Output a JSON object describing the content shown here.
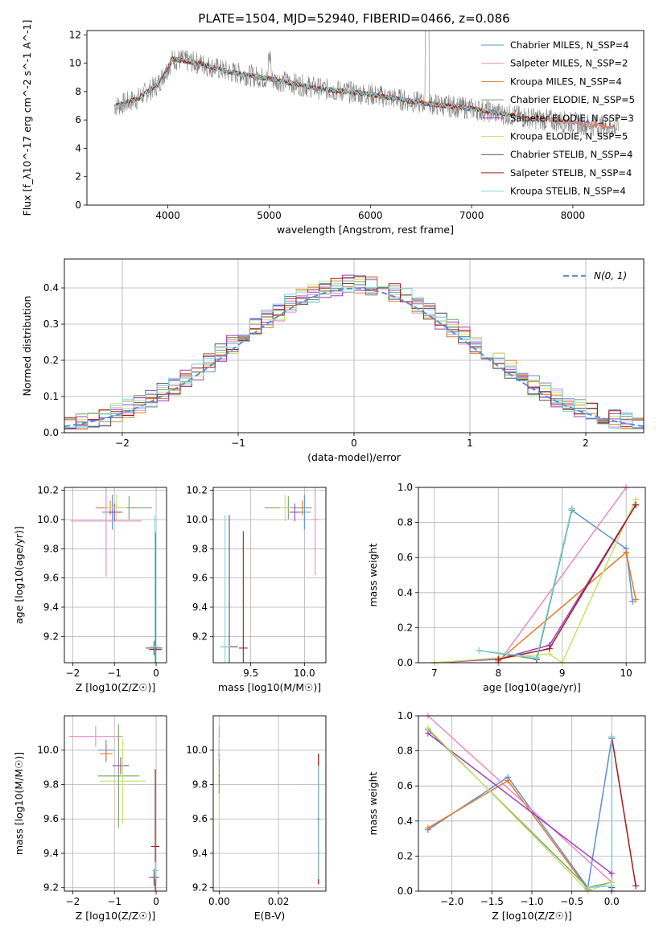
{
  "figure_title": "PLATE=1504, MJD=52940, FIBERID=0466, z=0.086",
  "colors": {
    "c0": "#5b8fd6",
    "c1": "#e88ac8",
    "c2": "#e07b2a",
    "c3": "#7d9e6a",
    "c4": "#9b3fbf",
    "c5": "#c8e06a",
    "c6": "#555555",
    "c7": "#a31a1a",
    "c8": "#7ed9e0",
    "data": "#808080"
  },
  "chart_data": [
    {
      "id": "spectrum",
      "type": "line",
      "xlabel": "wavelength [Angstrom, rest frame]",
      "ylabel": "Flux [f_λ10^-17 erg cm^-2 s^-1 A^-1]",
      "xlim": [
        3200,
        8700
      ],
      "ylim": [
        0,
        12.3
      ],
      "xticks": [
        4000,
        5000,
        6000,
        7000,
        8000
      ],
      "yticks": [
        0,
        2,
        4,
        6,
        8,
        10,
        12
      ],
      "grid": false,
      "legend_position": "top-right",
      "legend": [
        {
          "label": "Chabrier MILES, N_SSP=4",
          "color": "c0"
        },
        {
          "label": "Salpeter MILES, N_SSP=2",
          "color": "c1"
        },
        {
          "label": "Kroupa MILES, N_SSP=4",
          "color": "c2"
        },
        {
          "label": "Chabrier ELODIE, N_SSP=5",
          "color": "c3"
        },
        {
          "label": "Salpeter ELODIE, N_SSP=3",
          "color": "c4"
        },
        {
          "label": "Kroupa ELODIE, N_SSP=5",
          "color": "c5"
        },
        {
          "label": "Chabrier STELIB, N_SSP=4",
          "color": "c6"
        },
        {
          "label": "Salpeter STELIB, N_SSP=4",
          "color": "c7"
        },
        {
          "label": "Kroupa STELIB, N_SSP=4",
          "color": "c8"
        }
      ],
      "continuum": {
        "x": [
          3500,
          3700,
          3900,
          4050,
          4300,
          4600,
          5000,
          5500,
          6000,
          6500,
          7000,
          7500,
          8000,
          8500
        ],
        "y": [
          7.0,
          7.5,
          8.5,
          10.3,
          10.0,
          9.4,
          8.9,
          8.2,
          7.8,
          7.2,
          6.8,
          6.2,
          5.8,
          5.4
        ]
      },
      "model_range": {
        "x": [
          3480,
          7430
        ],
        "x_stelib": [
          3480,
          7430
        ],
        "x_miles": [
          3520,
          8400
        ]
      }
    },
    {
      "id": "histogram",
      "type": "histogram",
      "xlabel": "(data-model)/error",
      "ylabel": "Normed distribution",
      "xlim": [
        -2.5,
        2.5
      ],
      "ylim": [
        0,
        0.48
      ],
      "xticks": [
        -2,
        -1,
        0,
        1,
        2
      ],
      "yticks": [
        0.0,
        0.1,
        0.2,
        0.3,
        0.4
      ],
      "grid": true,
      "legend": [
        {
          "label": "N(0, 1)",
          "style": "dashed",
          "color": "c0"
        }
      ],
      "legend_position": "top-right",
      "bin_width": 0.1
    },
    {
      "id": "age_vs_Z",
      "type": "errorbar",
      "xlabel": "Z [log10(Z/Z☉)]",
      "ylabel": "age  [log10(age/yr)]",
      "xlim": [
        -2.2,
        0.25
      ],
      "ylim": [
        9.02,
        10.22
      ],
      "xticks": [
        -2,
        -1,
        0
      ],
      "yticks": [
        9.2,
        9.4,
        9.6,
        9.8,
        10.0,
        10.2
      ],
      "grid": true,
      "points": [
        {
          "color": "c0",
          "x": -1.05,
          "xerr": 0.25,
          "y": 10.05,
          "yerr": 0.12
        },
        {
          "color": "c1",
          "x": -1.2,
          "xerr": 0.85,
          "y": 9.99,
          "yerr": 0.38
        },
        {
          "color": "c2",
          "x": -1.1,
          "xerr": 0.35,
          "y": 10.08,
          "yerr": 0.05
        },
        {
          "color": "c3",
          "x": -0.65,
          "xerr": 0.55,
          "y": 10.08,
          "yerr": 0.08
        },
        {
          "color": "c4",
          "x": -1.0,
          "xerr": 0.15,
          "y": 10.05,
          "yerr": 0.06
        },
        {
          "color": "c5",
          "x": -0.95,
          "xerr": 0.25,
          "y": 10.08,
          "yerr": 0.09
        },
        {
          "color": "c6",
          "x": -0.05,
          "xerr": 0.2,
          "y": 9.12,
          "yerr": 0.05
        },
        {
          "color": "c7",
          "x": -0.02,
          "xerr": 0.15,
          "y": 9.11,
          "yerr": 0.8
        },
        {
          "color": "c8",
          "x": -0.03,
          "xerr": 0.12,
          "y": 9.13,
          "yerr": 0.9
        }
      ]
    },
    {
      "id": "age_vs_mass",
      "type": "errorbar",
      "xlabel": "mass [log10(M/M☉)]",
      "ylabel": "",
      "xlim": [
        9.15,
        10.2
      ],
      "ylim": [
        9.02,
        10.22
      ],
      "xticks": [
        9.5,
        10.0
      ],
      "yticks": [
        9.2,
        9.4,
        9.6,
        9.8,
        10.0,
        10.2
      ],
      "grid": true,
      "points": [
        {
          "color": "c0",
          "x": 10.0,
          "xerr": 0.06,
          "y": 10.05,
          "yerr": 0.12
        },
        {
          "color": "c1",
          "x": 10.1,
          "xerr": 0.04,
          "y": 10.0,
          "yerr": 0.38
        },
        {
          "color": "c2",
          "x": 9.98,
          "xerr": 0.05,
          "y": 10.08,
          "yerr": 0.05
        },
        {
          "color": "c3",
          "x": 9.85,
          "xerr": 0.22,
          "y": 10.08,
          "yerr": 0.08
        },
        {
          "color": "c4",
          "x": 9.91,
          "xerr": 0.05,
          "y": 10.05,
          "yerr": 0.06
        },
        {
          "color": "c5",
          "x": 9.82,
          "xerr": 0.05,
          "y": 10.08,
          "yerr": 0.09
        },
        {
          "color": "c6",
          "x": 9.3,
          "xerr": 0.08,
          "y": 9.13,
          "yerr": 0.9
        },
        {
          "color": "c7",
          "x": 9.43,
          "xerr": 0.04,
          "y": 9.12,
          "yerr": 0.8
        },
        {
          "color": "c8",
          "x": 9.26,
          "xerr": 0.05,
          "y": 9.13,
          "yerr": 0.9
        }
      ]
    },
    {
      "id": "weight_vs_age",
      "type": "line",
      "xlabel": "age  [log10(age/yr)]",
      "ylabel": "mass weight",
      "xlim": [
        6.75,
        10.3
      ],
      "ylim": [
        0,
        1.0
      ],
      "xticks": [
        7,
        8,
        9,
        10
      ],
      "yticks": [
        0.0,
        0.2,
        0.4,
        0.6,
        0.8,
        1.0
      ],
      "grid": true,
      "series": [
        {
          "color": "c0",
          "x": [
            8.6,
            9.15,
            10.0,
            10.1
          ],
          "y": [
            0.02,
            0.87,
            0.65,
            0.35
          ]
        },
        {
          "color": "c1",
          "x": [
            8.0,
            10.0
          ],
          "y": [
            0.0,
            1.0
          ]
        },
        {
          "color": "c2",
          "x": [
            8.0,
            10.0,
            10.15
          ],
          "y": [
            0.01,
            0.63,
            0.36
          ]
        },
        {
          "color": "c3",
          "x": [
            7.7,
            8.6,
            9.15
          ],
          "y": [
            0.07,
            0.02,
            0.87
          ]
        },
        {
          "color": "c4",
          "x": [
            7.0,
            8.0,
            8.8,
            10.15
          ],
          "y": [
            0.0,
            0.02,
            0.1,
            0.9
          ]
        },
        {
          "color": "c5",
          "x": [
            7.0,
            8.8,
            9.0,
            10.15
          ],
          "y": [
            0.0,
            0.05,
            0.0,
            0.93
          ]
        },
        {
          "color": "c6",
          "x": [
            8.6,
            9.15
          ],
          "y": [
            0.02,
            0.88
          ]
        },
        {
          "color": "c7",
          "x": [
            8.0,
            8.8,
            10.15
          ],
          "y": [
            0.02,
            0.08,
            0.9
          ]
        },
        {
          "color": "c8",
          "x": [
            7.7,
            8.6,
            9.15
          ],
          "y": [
            0.07,
            0.03,
            0.88
          ]
        }
      ]
    },
    {
      "id": "mass_vs_Z",
      "type": "errorbar",
      "xlabel": "Z [log10(Z/Z☉)]",
      "ylabel": "mass [log10(M/M☉)]",
      "xlim": [
        -2.2,
        0.25
      ],
      "ylim": [
        9.18,
        10.2
      ],
      "xticks": [
        -2,
        -1,
        0
      ],
      "yticks": [
        9.2,
        9.4,
        9.6,
        9.8,
        10.0
      ],
      "grid": true,
      "points": [
        {
          "color": "c0",
          "x": -1.2,
          "xerr": 0.2,
          "y": 10.0,
          "yerr": 0.06
        },
        {
          "color": "c1",
          "x": -1.45,
          "xerr": 0.65,
          "y": 10.08,
          "yerr": 0.06
        },
        {
          "color": "c2",
          "x": -1.2,
          "xerr": 0.15,
          "y": 9.98,
          "yerr": 0.05
        },
        {
          "color": "c3",
          "x": -0.9,
          "xerr": 0.5,
          "y": 9.85,
          "yerr": 0.3
        },
        {
          "color": "c4",
          "x": -0.85,
          "xerr": 0.2,
          "y": 9.91,
          "yerr": 0.05
        },
        {
          "color": "c5",
          "x": -0.8,
          "xerr": 0.55,
          "y": 9.82,
          "yerr": 0.25
        },
        {
          "color": "c6",
          "x": -0.05,
          "xerr": 0.12,
          "y": 9.26,
          "yerr": 0.05
        },
        {
          "color": "c7",
          "x": -0.02,
          "xerr": 0.1,
          "y": 9.44,
          "yerr": 0.45
        },
        {
          "color": "c8",
          "x": -0.02,
          "xerr": 0.08,
          "y": 9.3,
          "yerr": 0.05
        }
      ]
    },
    {
      "id": "mass_vs_ebv",
      "type": "errorbar",
      "xlabel": "E(B-V)",
      "ylabel": "",
      "xlim": [
        -0.002,
        0.036
      ],
      "ylim": [
        9.18,
        10.2
      ],
      "xticks": [
        0.0,
        0.02
      ],
      "yticks": [
        9.2,
        9.4,
        9.6,
        9.8,
        10.0
      ],
      "grid": true,
      "points": [
        {
          "color": "c0",
          "x": 0.0,
          "xerr": 0.0003,
          "y": 10.0,
          "yerr": 0.06
        },
        {
          "color": "c1",
          "x": 0.0,
          "xerr": 0.0003,
          "y": 10.08,
          "yerr": 0.06
        },
        {
          "color": "c4",
          "x": 0.0,
          "xerr": 0.0003,
          "y": 9.97,
          "yerr": 0.05
        },
        {
          "color": "c5",
          "x": 0.0,
          "xerr": 0.0003,
          "y": 9.82,
          "yerr": 0.26
        },
        {
          "color": "c3",
          "x": 0.0,
          "xerr": 0.0003,
          "y": 9.85,
          "yerr": 0.1
        },
        {
          "color": "c6",
          "x": 0.0335,
          "xerr": 0.0003,
          "y": 9.6,
          "yerr": 0.38
        },
        {
          "color": "c7",
          "x": 0.0335,
          "xerr": 0.0003,
          "y": 9.6,
          "yerr": 0.38
        },
        {
          "color": "c8",
          "x": 0.0335,
          "xerr": 0.0003,
          "y": 9.58,
          "yerr": 0.33
        }
      ]
    },
    {
      "id": "weight_vs_Z",
      "type": "line",
      "xlabel": "Z [log10(Z/Z☉)]",
      "ylabel": "mass weight",
      "xlim": [
        -2.42,
        0.42
      ],
      "ylim": [
        0,
        1.0
      ],
      "xticks": [
        -2.0,
        -1.5,
        -1.0,
        -0.5,
        0.0
      ],
      "yticks": [
        0.0,
        0.2,
        0.4,
        0.6,
        0.8,
        1.0
      ],
      "grid": true,
      "series": [
        {
          "color": "c0",
          "x": [
            -2.3,
            -1.3,
            -0.3,
            0.0
          ],
          "y": [
            0.35,
            0.65,
            0.02,
            0.87
          ]
        },
        {
          "color": "c1",
          "x": [
            -2.3,
            0.0
          ],
          "y": [
            1.0,
            0.05
          ]
        },
        {
          "color": "c2",
          "x": [
            -2.3,
            -1.3,
            -0.3
          ],
          "y": [
            0.36,
            0.63,
            0.01
          ]
        },
        {
          "color": "c3",
          "x": [
            -2.3,
            -0.3,
            0.0
          ],
          "y": [
            0.92,
            0.02,
            0.05
          ]
        },
        {
          "color": "c4",
          "x": [
            -2.3,
            0.0,
            0.0
          ],
          "y": [
            0.9,
            0.1,
            0.0
          ]
        },
        {
          "color": "c5",
          "x": [
            -2.3,
            -0.3,
            0.0
          ],
          "y": [
            0.93,
            0.0,
            0.05
          ]
        },
        {
          "color": "c6",
          "x": [
            0.0,
            0.0
          ],
          "y": [
            0.02,
            0.88
          ]
        },
        {
          "color": "c7",
          "x": [
            0.0,
            0.3
          ],
          "y": [
            0.88,
            0.03
          ]
        },
        {
          "color": "c8",
          "x": [
            -0.3,
            0.0,
            0.0
          ],
          "y": [
            0.02,
            0.03,
            0.88
          ]
        }
      ]
    }
  ]
}
